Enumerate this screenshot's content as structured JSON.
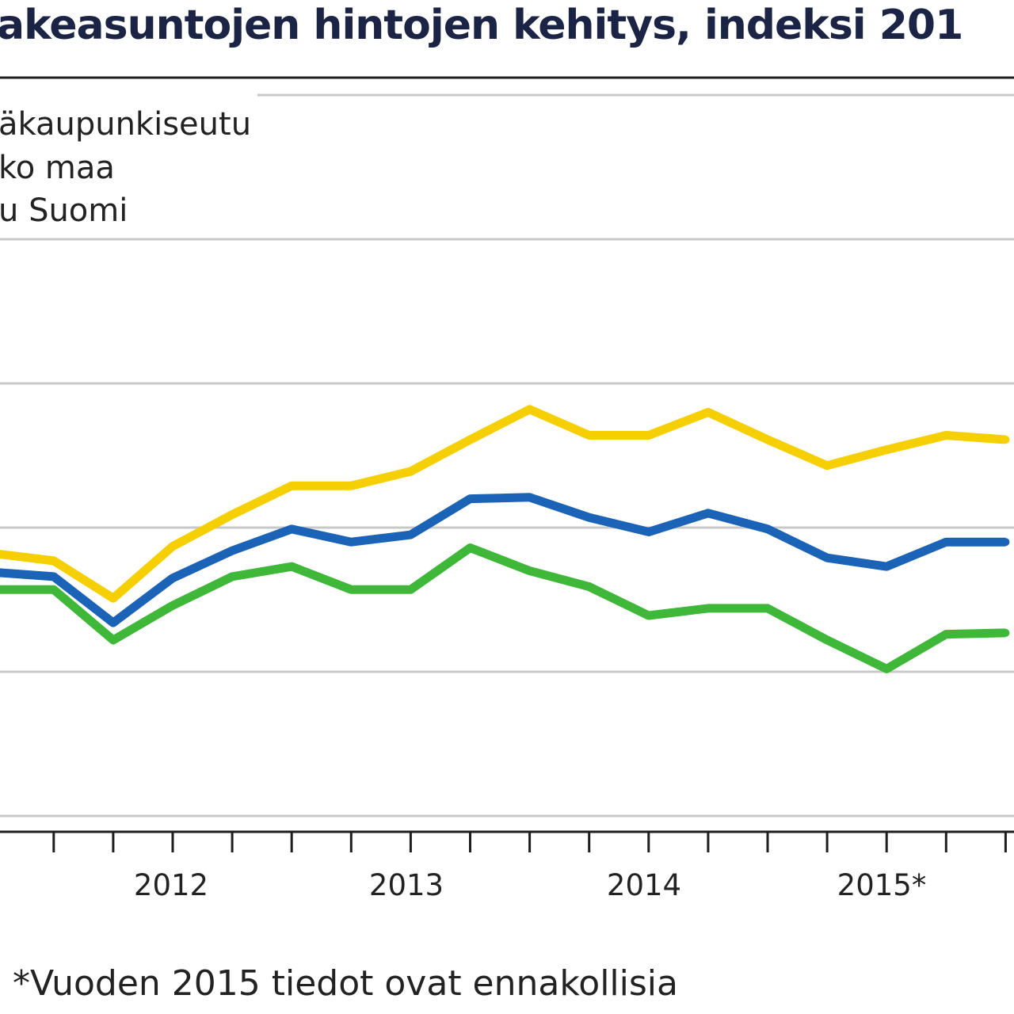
{
  "chart_data": {
    "type": "line",
    "title": "akeasuntojen hintojen kehitys, indeksi 201",
    "x": [
      "2011Q2",
      "2011Q3",
      "2011Q4",
      "2012Q1",
      "2012Q2",
      "2012Q3",
      "2012Q4",
      "2013Q1",
      "2013Q2",
      "2013Q3",
      "2013Q4",
      "2014Q1",
      "2014Q2",
      "2014Q3",
      "2014Q4",
      "2015Q1",
      "2015Q2",
      "2015Q3"
    ],
    "x_tick_labels": [
      "2012",
      "2013",
      "2014",
      "2015*"
    ],
    "ylim": [
      95,
      120
    ],
    "grid": true,
    "legend_position": "top-left",
    "series": [
      {
        "name": "äkaupunkiseutu",
        "color": "#f5cf00",
        "values": [
          104.1,
          103.85,
          102.55,
          104.35,
          105.45,
          106.45,
          106.45,
          106.95,
          108.05,
          109.1,
          108.2,
          108.2,
          109.0,
          108.05,
          107.15,
          107.7,
          108.2,
          108.05
        ]
      },
      {
        "name": "ko maa",
        "color": "#1b63b6",
        "values": [
          103.45,
          103.3,
          101.7,
          103.25,
          104.2,
          104.95,
          104.5,
          104.75,
          106.0,
          106.05,
          105.35,
          104.85,
          105.5,
          104.95,
          103.95,
          103.65,
          104.5,
          104.5
        ]
      },
      {
        "name": "u Suomi",
        "color": "#3fb83a",
        "values": [
          102.85,
          102.85,
          101.1,
          102.3,
          103.3,
          103.65,
          102.85,
          102.85,
          104.3,
          103.5,
          102.95,
          101.95,
          102.2,
          102.2,
          101.1,
          100.1,
          101.3,
          101.35
        ]
      }
    ],
    "footnote": "*Vuoden 2015 tiedot ovat ennakollisia"
  }
}
